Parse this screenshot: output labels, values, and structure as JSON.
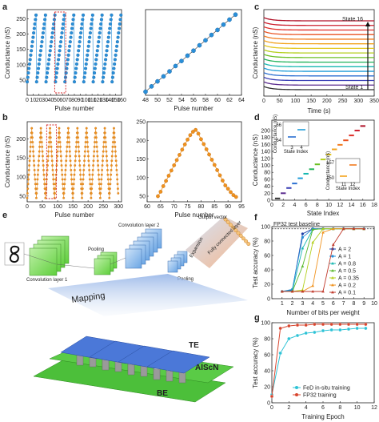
{
  "panel_labels": [
    "a",
    "b",
    "c",
    "d",
    "e",
    "f",
    "g"
  ],
  "chart_data": [
    {
      "id": "a-left",
      "type": "scatter",
      "xlabel": "Pulse number",
      "ylabel": "Conductance (nS)",
      "xlim": [
        0,
        160
      ],
      "ylim": [
        0,
        280
      ],
      "xticks": [
        0,
        10,
        20,
        30,
        40,
        50,
        60,
        70,
        80,
        90,
        100,
        110,
        120,
        130,
        140,
        150,
        160
      ],
      "yticks": [
        50,
        100,
        150,
        200,
        250
      ],
      "cycles": 10,
      "pulses_per_cycle": 16,
      "y_start": 44,
      "y_end": 262,
      "color": "#2a8fd8",
      "highlight_box": [
        48,
        64
      ]
    },
    {
      "id": "a-right",
      "type": "scatter",
      "xlabel": "Pulse number",
      "ylabel": "",
      "xlim": [
        48,
        64
      ],
      "ylim": [
        35,
        275
      ],
      "xticks": [
        48,
        50,
        52,
        54,
        56,
        58,
        60,
        62,
        64
      ],
      "x": [
        48,
        49,
        50,
        51,
        52,
        53,
        54,
        55,
        56,
        57,
        58,
        59,
        60,
        61,
        62,
        63
      ],
      "y": [
        45,
        60,
        74,
        88,
        102,
        117,
        131,
        146,
        160,
        175,
        189,
        204,
        218,
        233,
        247,
        261
      ],
      "color": "#2a8fd8"
    },
    {
      "id": "b-left",
      "type": "scatter",
      "xlabel": "Pulse number",
      "ylabel": "Conductance (nS)",
      "xlim": [
        0,
        310
      ],
      "ylim": [
        35,
        245
      ],
      "xticks": [
        0,
        50,
        100,
        150,
        200,
        250,
        300
      ],
      "yticks": [
        50,
        100,
        150,
        200
      ],
      "cycles": 10,
      "pulses_per_cycle": 30,
      "y_min": 45,
      "y_max": 228,
      "color": "#f0921e",
      "highlight_box": [
        64,
        96
      ]
    },
    {
      "id": "b-right",
      "type": "line",
      "xlabel": "Pulse number",
      "ylabel": "",
      "xlim": [
        60,
        95
      ],
      "ylim": [
        35,
        250
      ],
      "xticks": [
        60,
        65,
        70,
        75,
        80,
        85,
        90,
        95
      ],
      "yticks": [
        50,
        100,
        150,
        200,
        250
      ],
      "x": [
        64,
        65,
        66,
        67,
        68,
        69,
        70,
        71,
        72,
        73,
        74,
        75,
        76,
        77,
        78,
        79,
        80,
        81,
        82,
        83,
        84,
        85,
        86,
        87,
        88,
        89,
        90,
        91,
        92,
        93
      ],
      "y": [
        50,
        62,
        77,
        91,
        105,
        119,
        133,
        147,
        161,
        175,
        189,
        202,
        214,
        223,
        228,
        218,
        203,
        190,
        176,
        162,
        148,
        134,
        120,
        106,
        92,
        79,
        70,
        61,
        53,
        48
      ],
      "color": "#f0921e"
    },
    {
      "id": "c",
      "type": "line",
      "xlabel": "Time (s)",
      "ylabel": "Conductance (nS)",
      "xlim": [
        0,
        350
      ],
      "xticks": [
        0,
        50,
        100,
        150,
        200,
        250,
        300,
        350
      ],
      "states": 16,
      "colors": [
        "#333333",
        "#5b2c8f",
        "#3a3fb5",
        "#2b6fd1",
        "#1f9cd8",
        "#16b7b0",
        "#21b35a",
        "#6cc024",
        "#b4cf1c",
        "#e3c61c",
        "#f3a31d",
        "#f27b1e",
        "#ea5220",
        "#e02d26",
        "#cc1e2d",
        "#b01229"
      ],
      "annotations": [
        "State 16",
        "State 1"
      ]
    },
    {
      "id": "d",
      "type": "scatter",
      "xlabel": "State Index",
      "ylabel": "Conductance (nS)",
      "xlim": [
        0,
        18
      ],
      "ylim": [
        0,
        230
      ],
      "xticks": [
        0,
        2,
        4,
        6,
        8,
        10,
        12,
        14,
        16,
        18
      ],
      "yticks": [
        0,
        20,
        40,
        60,
        80,
        100,
        120,
        140,
        160,
        180,
        200
      ],
      "states": [
        1,
        2,
        3,
        4,
        5,
        6,
        7,
        8,
        9,
        10,
        11,
        12,
        13,
        14,
        15,
        16
      ],
      "levels": [
        5,
        20,
        35,
        48,
        63,
        76,
        89,
        103,
        117,
        131,
        146,
        159,
        172,
        186,
        200,
        213
      ],
      "inset1": {
        "xlabel": "State Index",
        "ylabel": "Conductance (nS)",
        "xticks": [
          3,
          4
        ],
        "yticks": [
          66.0,
          64.0
        ]
      },
      "inset2": {
        "xlabel": "State Index",
        "ylabel": "Conductance (nS)",
        "xticks": [
          11,
          12
        ],
        "yticks": [
          157.0,
          150.0
        ]
      }
    },
    {
      "id": "f",
      "type": "line",
      "xlabel": "Number of bits per weight",
      "ylabel": "Test accuracy (%)",
      "xlim": [
        0,
        10
      ],
      "ylim": [
        0,
        100
      ],
      "xticks": [
        1,
        2,
        3,
        4,
        5,
        6,
        7,
        8,
        9,
        10
      ],
      "yticks": [
        0,
        20,
        40,
        60,
        80,
        100
      ],
      "baseline_label": "FP32 test baseline",
      "baseline": 97,
      "series": [
        {
          "name": "A = 2",
          "color": "#1c3fa8",
          "marker": "circle",
          "x": [
            1,
            2,
            3,
            4,
            5,
            6,
            7,
            8,
            9
          ],
          "y": [
            10,
            12,
            90,
            97,
            97,
            97,
            97,
            97,
            97
          ]
        },
        {
          "name": "A = 1",
          "color": "#2a8fd8",
          "marker": "circle",
          "x": [
            1,
            2,
            3,
            4,
            5,
            6,
            7,
            8,
            9
          ],
          "y": [
            10,
            13,
            85,
            97,
            97,
            97,
            97,
            97,
            97
          ]
        },
        {
          "name": "A = 0.8",
          "color": "#16b7b0",
          "marker": "triangle",
          "x": [
            1,
            2,
            3,
            4,
            5,
            6,
            7,
            8,
            9
          ],
          "y": [
            10,
            11,
            70,
            96,
            97,
            97,
            97,
            97,
            97
          ]
        },
        {
          "name": "A = 0.5",
          "color": "#58b82a",
          "marker": "triangle",
          "x": [
            1,
            2,
            3,
            4,
            5,
            6,
            7,
            8,
            9
          ],
          "y": [
            10,
            10,
            45,
            96,
            97,
            97,
            97,
            97,
            97
          ]
        },
        {
          "name": "A = 0.35",
          "color": "#b4cf1c",
          "marker": "triangle",
          "x": [
            1,
            2,
            3,
            4,
            5,
            6,
            7,
            8,
            9
          ],
          "y": [
            10,
            10,
            12,
            78,
            97,
            97,
            97,
            97,
            97
          ]
        },
        {
          "name": "A = 0.2",
          "color": "#f0921e",
          "marker": "triangle",
          "x": [
            1,
            2,
            3,
            4,
            5,
            6,
            7,
            8,
            9
          ],
          "y": [
            10,
            10,
            10,
            18,
            92,
            97,
            97,
            97,
            97
          ]
        },
        {
          "name": "A = 0.1",
          "color": "#c0392b",
          "marker": "triangle",
          "x": [
            1,
            2,
            3,
            4,
            5,
            6,
            7,
            8,
            9
          ],
          "y": [
            10,
            10,
            10,
            10,
            10,
            75,
            97,
            97,
            97
          ]
        }
      ]
    },
    {
      "id": "g",
      "type": "line",
      "xlabel": "Training Epoch",
      "ylabel": "Test accuracy (%)",
      "xlim": [
        0,
        12
      ],
      "ylim": [
        0,
        100
      ],
      "xticks": [
        0,
        2,
        4,
        6,
        8,
        10,
        12
      ],
      "yticks": [
        0,
        20,
        40,
        60,
        80,
        100
      ],
      "series": [
        {
          "name": "FeD in-situ training",
          "color": "#2ec3d6",
          "marker": "circle",
          "x": [
            0,
            1,
            2,
            3,
            4,
            5,
            6,
            7,
            8,
            9,
            10,
            11
          ],
          "y": [
            10,
            62,
            80,
            84,
            87,
            88,
            90,
            91,
            91,
            92,
            93,
            93
          ]
        },
        {
          "name": "FP32 training",
          "color": "#d8452e",
          "marker": "circle",
          "x": [
            0,
            1,
            2,
            3,
            4,
            5,
            6,
            7,
            8,
            9,
            10,
            11
          ],
          "y": [
            8,
            93,
            96,
            97,
            97,
            98,
            98,
            98,
            98,
            98,
            98,
            98
          ]
        }
      ]
    }
  ],
  "schematic_e": {
    "labels": [
      "Convolution layer 1",
      "Pooling",
      "Convolution layer 2",
      "Output vector",
      "Fully connected layer",
      "Expansion",
      "Pooling",
      "Mapping",
      "TE",
      "AlScN",
      "BE"
    ]
  }
}
